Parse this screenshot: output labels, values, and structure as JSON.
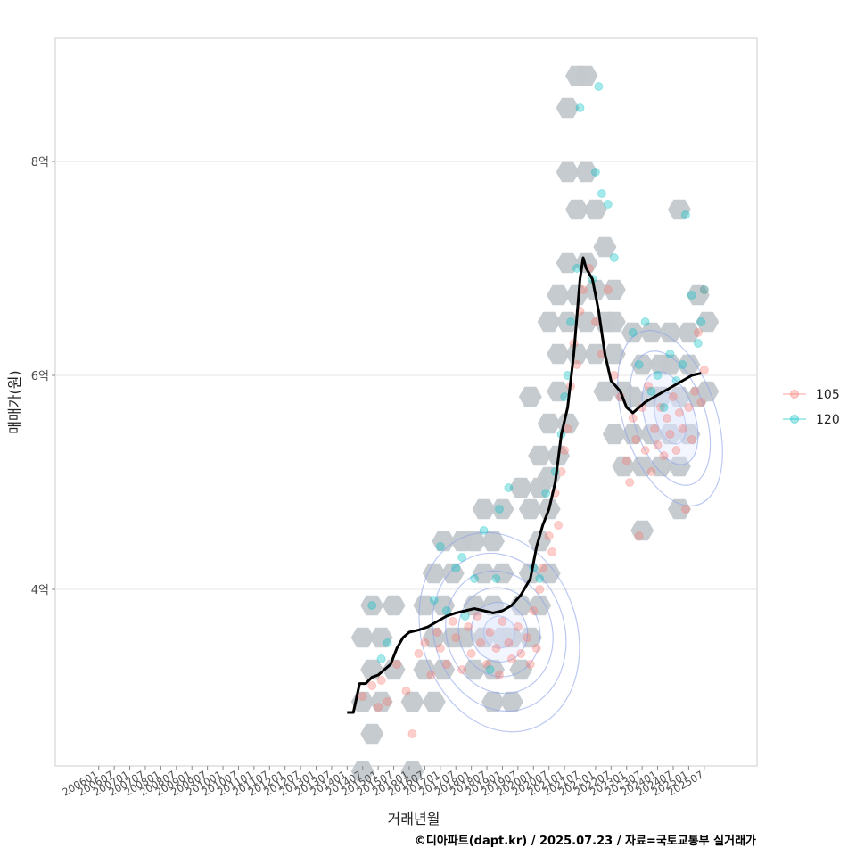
{
  "chart_data": {
    "type": "scatter",
    "title": "",
    "xlabel": "거래년월",
    "ylabel": "매매가(원)",
    "caption": "©디아파트(dapt.kr) / 2025.07.23 / 자료=국토교통부 실거래가",
    "x_ticks": [
      "200601",
      "200607",
      "200701",
      "200707",
      "200801",
      "200807",
      "200901",
      "200907",
      "201001",
      "201007",
      "201101",
      "201107",
      "201201",
      "201207",
      "201301",
      "201307",
      "201401",
      "201407",
      "201501",
      "201507",
      "201601",
      "201607",
      "201701",
      "201707",
      "201801",
      "201807",
      "201901",
      "201907",
      "202001",
      "202007",
      "202101",
      "202107",
      "202201",
      "202207",
      "202301",
      "202307",
      "202401",
      "202407",
      "202501",
      "202507"
    ],
    "y_ticks": [
      {
        "value": 4,
        "label": "4억"
      },
      {
        "value": 6,
        "label": "6억"
      },
      {
        "value": 8,
        "label": "8억"
      }
    ],
    "ylim": [
      2.35,
      9.15
    ],
    "xlim": [
      2004.6,
      2027.2
    ],
    "legend": [
      {
        "name": "105",
        "color": "#F8766D"
      },
      {
        "name": "120",
        "color": "#00BFC4"
      }
    ],
    "trend_line": {
      "name": "moving average",
      "x": [
        2014.0,
        2014.2,
        2014.4,
        2014.6,
        2014.8,
        2015.0,
        2015.2,
        2015.4,
        2015.6,
        2015.8,
        2016.0,
        2016.3,
        2016.6,
        2016.9,
        2017.2,
        2017.5,
        2017.8,
        2018.1,
        2018.4,
        2018.7,
        2019.0,
        2019.3,
        2019.6,
        2019.9,
        2020.1,
        2020.3,
        2020.5,
        2020.7,
        2020.9,
        2021.1,
        2021.3,
        2021.5,
        2021.6,
        2021.7,
        2021.9,
        2022.1,
        2022.3,
        2022.5,
        2022.8,
        2023.0,
        2023.2,
        2023.4,
        2023.6,
        2023.9,
        2024.2,
        2024.5,
        2024.8,
        2025.1,
        2025.4
      ],
      "y": [
        2.85,
        2.85,
        3.12,
        3.12,
        3.18,
        3.2,
        3.25,
        3.3,
        3.45,
        3.55,
        3.6,
        3.62,
        3.65,
        3.7,
        3.75,
        3.78,
        3.8,
        3.82,
        3.8,
        3.78,
        3.8,
        3.85,
        3.95,
        4.1,
        4.4,
        4.6,
        4.75,
        5.0,
        5.45,
        5.7,
        6.2,
        6.9,
        7.1,
        7.0,
        6.9,
        6.6,
        6.2,
        5.95,
        5.85,
        5.7,
        5.65,
        5.7,
        5.75,
        5.8,
        5.85,
        5.9,
        5.95,
        6.0,
        6.02
      ]
    },
    "series": [
      {
        "name": "105",
        "points": [
          {
            "x": 2014.5,
            "y": 3.0
          },
          {
            "x": 2014.8,
            "y": 3.1
          },
          {
            "x": 2015.0,
            "y": 2.9
          },
          {
            "x": 2015.1,
            "y": 3.15
          },
          {
            "x": 2015.3,
            "y": 2.95
          },
          {
            "x": 2015.6,
            "y": 3.3
          },
          {
            "x": 2015.9,
            "y": 3.05
          },
          {
            "x": 2016.1,
            "y": 2.65
          },
          {
            "x": 2016.3,
            "y": 3.4
          },
          {
            "x": 2016.5,
            "y": 3.5
          },
          {
            "x": 2016.7,
            "y": 3.2
          },
          {
            "x": 2016.9,
            "y": 3.6
          },
          {
            "x": 2017.0,
            "y": 3.45
          },
          {
            "x": 2017.2,
            "y": 3.3
          },
          {
            "x": 2017.4,
            "y": 3.7
          },
          {
            "x": 2017.5,
            "y": 3.55
          },
          {
            "x": 2017.7,
            "y": 3.25
          },
          {
            "x": 2017.9,
            "y": 3.65
          },
          {
            "x": 2018.0,
            "y": 3.4
          },
          {
            "x": 2018.2,
            "y": 3.75
          },
          {
            "x": 2018.3,
            "y": 3.5
          },
          {
            "x": 2018.5,
            "y": 3.3
          },
          {
            "x": 2018.6,
            "y": 3.6
          },
          {
            "x": 2018.8,
            "y": 3.45
          },
          {
            "x": 2018.9,
            "y": 3.2
          },
          {
            "x": 2019.0,
            "y": 3.7
          },
          {
            "x": 2019.2,
            "y": 3.5
          },
          {
            "x": 2019.3,
            "y": 3.35
          },
          {
            "x": 2019.5,
            "y": 3.65
          },
          {
            "x": 2019.6,
            "y": 3.4
          },
          {
            "x": 2019.8,
            "y": 3.55
          },
          {
            "x": 2019.9,
            "y": 3.3
          },
          {
            "x": 2020.0,
            "y": 3.8
          },
          {
            "x": 2020.1,
            "y": 3.45
          },
          {
            "x": 2020.2,
            "y": 4.0
          },
          {
            "x": 2020.3,
            "y": 4.2
          },
          {
            "x": 2020.5,
            "y": 4.5
          },
          {
            "x": 2020.6,
            "y": 4.35
          },
          {
            "x": 2020.7,
            "y": 4.9
          },
          {
            "x": 2020.8,
            "y": 4.6
          },
          {
            "x": 2020.9,
            "y": 5.1
          },
          {
            "x": 2021.0,
            "y": 5.3
          },
          {
            "x": 2021.1,
            "y": 5.5
          },
          {
            "x": 2021.2,
            "y": 5.9
          },
          {
            "x": 2021.3,
            "y": 6.3
          },
          {
            "x": 2021.4,
            "y": 6.1
          },
          {
            "x": 2021.5,
            "y": 6.6
          },
          {
            "x": 2021.6,
            "y": 6.8
          },
          {
            "x": 2021.8,
            "y": 7.0
          },
          {
            "x": 2022.0,
            "y": 6.5
          },
          {
            "x": 2022.2,
            "y": 6.2
          },
          {
            "x": 2022.4,
            "y": 6.8
          },
          {
            "x": 2022.6,
            "y": 6.0
          },
          {
            "x": 2022.8,
            "y": 5.8
          },
          {
            "x": 2023.0,
            "y": 5.2
          },
          {
            "x": 2023.1,
            "y": 5.0
          },
          {
            "x": 2023.2,
            "y": 5.6
          },
          {
            "x": 2023.3,
            "y": 5.4
          },
          {
            "x": 2023.4,
            "y": 4.5
          },
          {
            "x": 2023.5,
            "y": 5.7
          },
          {
            "x": 2023.6,
            "y": 5.3
          },
          {
            "x": 2023.7,
            "y": 5.9
          },
          {
            "x": 2023.8,
            "y": 5.1
          },
          {
            "x": 2023.9,
            "y": 5.5
          },
          {
            "x": 2024.0,
            "y": 5.35
          },
          {
            "x": 2024.1,
            "y": 5.7
          },
          {
            "x": 2024.2,
            "y": 5.25
          },
          {
            "x": 2024.3,
            "y": 5.6
          },
          {
            "x": 2024.4,
            "y": 5.45
          },
          {
            "x": 2024.5,
            "y": 5.8
          },
          {
            "x": 2024.6,
            "y": 5.3
          },
          {
            "x": 2024.7,
            "y": 5.65
          },
          {
            "x": 2024.8,
            "y": 5.5
          },
          {
            "x": 2024.9,
            "y": 4.75
          },
          {
            "x": 2025.0,
            "y": 5.7
          },
          {
            "x": 2025.1,
            "y": 5.4
          },
          {
            "x": 2025.2,
            "y": 5.85
          },
          {
            "x": 2025.3,
            "y": 6.4
          },
          {
            "x": 2025.4,
            "y": 5.75
          },
          {
            "x": 2025.5,
            "y": 6.05
          },
          {
            "x": 2025.5,
            "y": 6.8
          }
        ]
      },
      {
        "name": "120",
        "points": [
          {
            "x": 2014.8,
            "y": 3.85
          },
          {
            "x": 2015.1,
            "y": 3.35
          },
          {
            "x": 2015.3,
            "y": 3.5
          },
          {
            "x": 2016.8,
            "y": 3.9
          },
          {
            "x": 2017.0,
            "y": 4.4
          },
          {
            "x": 2017.2,
            "y": 3.8
          },
          {
            "x": 2017.5,
            "y": 4.2
          },
          {
            "x": 2017.7,
            "y": 4.3
          },
          {
            "x": 2017.8,
            "y": 3.75
          },
          {
            "x": 2018.1,
            "y": 4.1
          },
          {
            "x": 2018.4,
            "y": 4.55
          },
          {
            "x": 2018.6,
            "y": 3.25
          },
          {
            "x": 2018.8,
            "y": 4.1
          },
          {
            "x": 2018.9,
            "y": 4.75
          },
          {
            "x": 2019.2,
            "y": 4.95
          },
          {
            "x": 2020.0,
            "y": 4.2
          },
          {
            "x": 2020.2,
            "y": 4.1
          },
          {
            "x": 2020.4,
            "y": 4.9
          },
          {
            "x": 2020.7,
            "y": 5.1
          },
          {
            "x": 2020.9,
            "y": 5.45
          },
          {
            "x": 2021.0,
            "y": 5.8
          },
          {
            "x": 2021.1,
            "y": 6.0
          },
          {
            "x": 2021.2,
            "y": 6.5
          },
          {
            "x": 2021.4,
            "y": 7.0
          },
          {
            "x": 2021.5,
            "y": 8.5
          },
          {
            "x": 2021.9,
            "y": 6.9
          },
          {
            "x": 2022.0,
            "y": 7.9
          },
          {
            "x": 2022.1,
            "y": 8.7
          },
          {
            "x": 2022.2,
            "y": 7.7
          },
          {
            "x": 2022.4,
            "y": 7.6
          },
          {
            "x": 2022.6,
            "y": 7.1
          },
          {
            "x": 2023.2,
            "y": 6.4
          },
          {
            "x": 2023.4,
            "y": 6.1
          },
          {
            "x": 2023.6,
            "y": 6.5
          },
          {
            "x": 2023.8,
            "y": 5.85
          },
          {
            "x": 2024.0,
            "y": 6.0
          },
          {
            "x": 2024.2,
            "y": 5.7
          },
          {
            "x": 2024.4,
            "y": 6.2
          },
          {
            "x": 2024.6,
            "y": 5.95
          },
          {
            "x": 2024.8,
            "y": 6.1
          },
          {
            "x": 2024.9,
            "y": 7.5
          },
          {
            "x": 2025.1,
            "y": 6.75
          },
          {
            "x": 2025.3,
            "y": 6.3
          },
          {
            "x": 2025.4,
            "y": 6.5
          },
          {
            "x": 2025.5,
            "y": 6.8
          }
        ]
      }
    ],
    "hexbin_centers": [
      {
        "x": 2014.8,
        "y": 3.85
      },
      {
        "x": 2015.5,
        "y": 3.85
      },
      {
        "x": 2014.5,
        "y": 3.55
      },
      {
        "x": 2015.1,
        "y": 3.55
      },
      {
        "x": 2014.8,
        "y": 3.25
      },
      {
        "x": 2015.5,
        "y": 3.25
      },
      {
        "x": 2014.5,
        "y": 2.95
      },
      {
        "x": 2015.1,
        "y": 2.95
      },
      {
        "x": 2014.8,
        "y": 2.65
      },
      {
        "x": 2014.5,
        "y": 2.3
      },
      {
        "x": 2016.1,
        "y": 2.95
      },
      {
        "x": 2016.8,
        "y": 2.95
      },
      {
        "x": 2016.1,
        "y": 2.3
      },
      {
        "x": 2016.5,
        "y": 3.25
      },
      {
        "x": 2017.1,
        "y": 3.25
      },
      {
        "x": 2016.8,
        "y": 3.55
      },
      {
        "x": 2017.4,
        "y": 3.55
      },
      {
        "x": 2016.5,
        "y": 3.85
      },
      {
        "x": 2017.1,
        "y": 3.85
      },
      {
        "x": 2016.8,
        "y": 4.15
      },
      {
        "x": 2017.4,
        "y": 4.15
      },
      {
        "x": 2017.1,
        "y": 4.45
      },
      {
        "x": 2017.7,
        "y": 4.45
      },
      {
        "x": 2018.1,
        "y": 3.25
      },
      {
        "x": 2018.7,
        "y": 3.25
      },
      {
        "x": 2017.8,
        "y": 3.55
      },
      {
        "x": 2018.4,
        "y": 3.55
      },
      {
        "x": 2019.0,
        "y": 3.55
      },
      {
        "x": 2018.1,
        "y": 3.85
      },
      {
        "x": 2018.7,
        "y": 3.85
      },
      {
        "x": 2018.4,
        "y": 4.15
      },
      {
        "x": 2019.0,
        "y": 4.15
      },
      {
        "x": 2018.1,
        "y": 4.45
      },
      {
        "x": 2018.7,
        "y": 4.45
      },
      {
        "x": 2018.4,
        "y": 4.75
      },
      {
        "x": 2019.0,
        "y": 4.75
      },
      {
        "x": 2018.7,
        "y": 2.95
      },
      {
        "x": 2019.3,
        "y": 2.95
      },
      {
        "x": 2019.6,
        "y": 3.25
      },
      {
        "x": 2019.3,
        "y": 3.55
      },
      {
        "x": 2019.9,
        "y": 3.55
      },
      {
        "x": 2019.6,
        "y": 3.85
      },
      {
        "x": 2020.2,
        "y": 3.85
      },
      {
        "x": 2019.9,
        "y": 4.15
      },
      {
        "x": 2020.5,
        "y": 4.15
      },
      {
        "x": 2020.2,
        "y": 4.45
      },
      {
        "x": 2019.6,
        "y": 4.95
      },
      {
        "x": 2020.2,
        "y": 4.95
      },
      {
        "x": 2019.9,
        "y": 4.75
      },
      {
        "x": 2020.5,
        "y": 4.75
      },
      {
        "x": 2020.5,
        "y": 5.05
      },
      {
        "x": 2020.2,
        "y": 5.25
      },
      {
        "x": 2020.8,
        "y": 5.25
      },
      {
        "x": 2020.5,
        "y": 5.55
      },
      {
        "x": 2020.8,
        "y": 5.85
      },
      {
        "x": 2019.9,
        "y": 5.8
      },
      {
        "x": 2021.1,
        "y": 5.55
      },
      {
        "x": 2020.8,
        "y": 6.2
      },
      {
        "x": 2021.4,
        "y": 6.2
      },
      {
        "x": 2020.5,
        "y": 6.5
      },
      {
        "x": 2021.1,
        "y": 6.5
      },
      {
        "x": 2020.8,
        "y": 6.75
      },
      {
        "x": 2021.4,
        "y": 6.75
      },
      {
        "x": 2021.1,
        "y": 7.05
      },
      {
        "x": 2021.7,
        "y": 7.05
      },
      {
        "x": 2021.1,
        "y": 8.5
      },
      {
        "x": 2021.4,
        "y": 8.8
      },
      {
        "x": 2021.1,
        "y": 7.9
      },
      {
        "x": 2021.7,
        "y": 7.9
      },
      {
        "x": 2021.4,
        "y": 7.55
      },
      {
        "x": 2022.0,
        "y": 7.55
      },
      {
        "x": 2021.7,
        "y": 8.8
      },
      {
        "x": 2021.7,
        "y": 6.5
      },
      {
        "x": 2022.3,
        "y": 6.5
      },
      {
        "x": 2022.0,
        "y": 6.8
      },
      {
        "x": 2022.6,
        "y": 6.8
      },
      {
        "x": 2022.3,
        "y": 7.2
      },
      {
        "x": 2022.0,
        "y": 6.2
      },
      {
        "x": 2022.6,
        "y": 6.2
      },
      {
        "x": 2022.3,
        "y": 5.85
      },
      {
        "x": 2022.9,
        "y": 5.85
      },
      {
        "x": 2022.6,
        "y": 6.5
      },
      {
        "x": 2022.6,
        "y": 5.45
      },
      {
        "x": 2023.2,
        "y": 5.45
      },
      {
        "x": 2022.9,
        "y": 5.15
      },
      {
        "x": 2023.5,
        "y": 5.15
      },
      {
        "x": 2023.2,
        "y": 5.8
      },
      {
        "x": 2023.8,
        "y": 5.8
      },
      {
        "x": 2023.5,
        "y": 6.1
      },
      {
        "x": 2024.1,
        "y": 6.1
      },
      {
        "x": 2023.2,
        "y": 6.4
      },
      {
        "x": 2023.8,
        "y": 6.4
      },
      {
        "x": 2023.5,
        "y": 4.55
      },
      {
        "x": 2023.8,
        "y": 5.45
      },
      {
        "x": 2024.4,
        "y": 5.45
      },
      {
        "x": 2024.1,
        "y": 5.15
      },
      {
        "x": 2024.7,
        "y": 5.15
      },
      {
        "x": 2024.1,
        "y": 5.8
      },
      {
        "x": 2024.7,
        "y": 5.8
      },
      {
        "x": 2024.4,
        "y": 6.1
      },
      {
        "x": 2025.0,
        "y": 6.1
      },
      {
        "x": 2024.4,
        "y": 6.4
      },
      {
        "x": 2025.0,
        "y": 6.4
      },
      {
        "x": 2025.3,
        "y": 6.75
      },
      {
        "x": 2025.6,
        "y": 6.5
      },
      {
        "x": 2025.3,
        "y": 5.8
      },
      {
        "x": 2025.0,
        "y": 5.45
      },
      {
        "x": 2024.7,
        "y": 4.75
      },
      {
        "x": 2024.7,
        "y": 7.55
      },
      {
        "x": 2025.6,
        "y": 5.85
      }
    ],
    "density_contours": [
      {
        "cx": 2018.9,
        "cy": 3.6,
        "rx": [
          0.5,
          0.9,
          1.3,
          1.7,
          2.1,
          2.5
        ],
        "ry": [
          0.15,
          0.28,
          0.42,
          0.58,
          0.75,
          0.95
        ]
      },
      {
        "cx": 2024.4,
        "cy": 5.6,
        "rx": [
          0.45,
          0.8,
          1.15,
          1.5
        ],
        "ry": [
          0.25,
          0.45,
          0.65,
          0.85
        ]
      }
    ]
  }
}
